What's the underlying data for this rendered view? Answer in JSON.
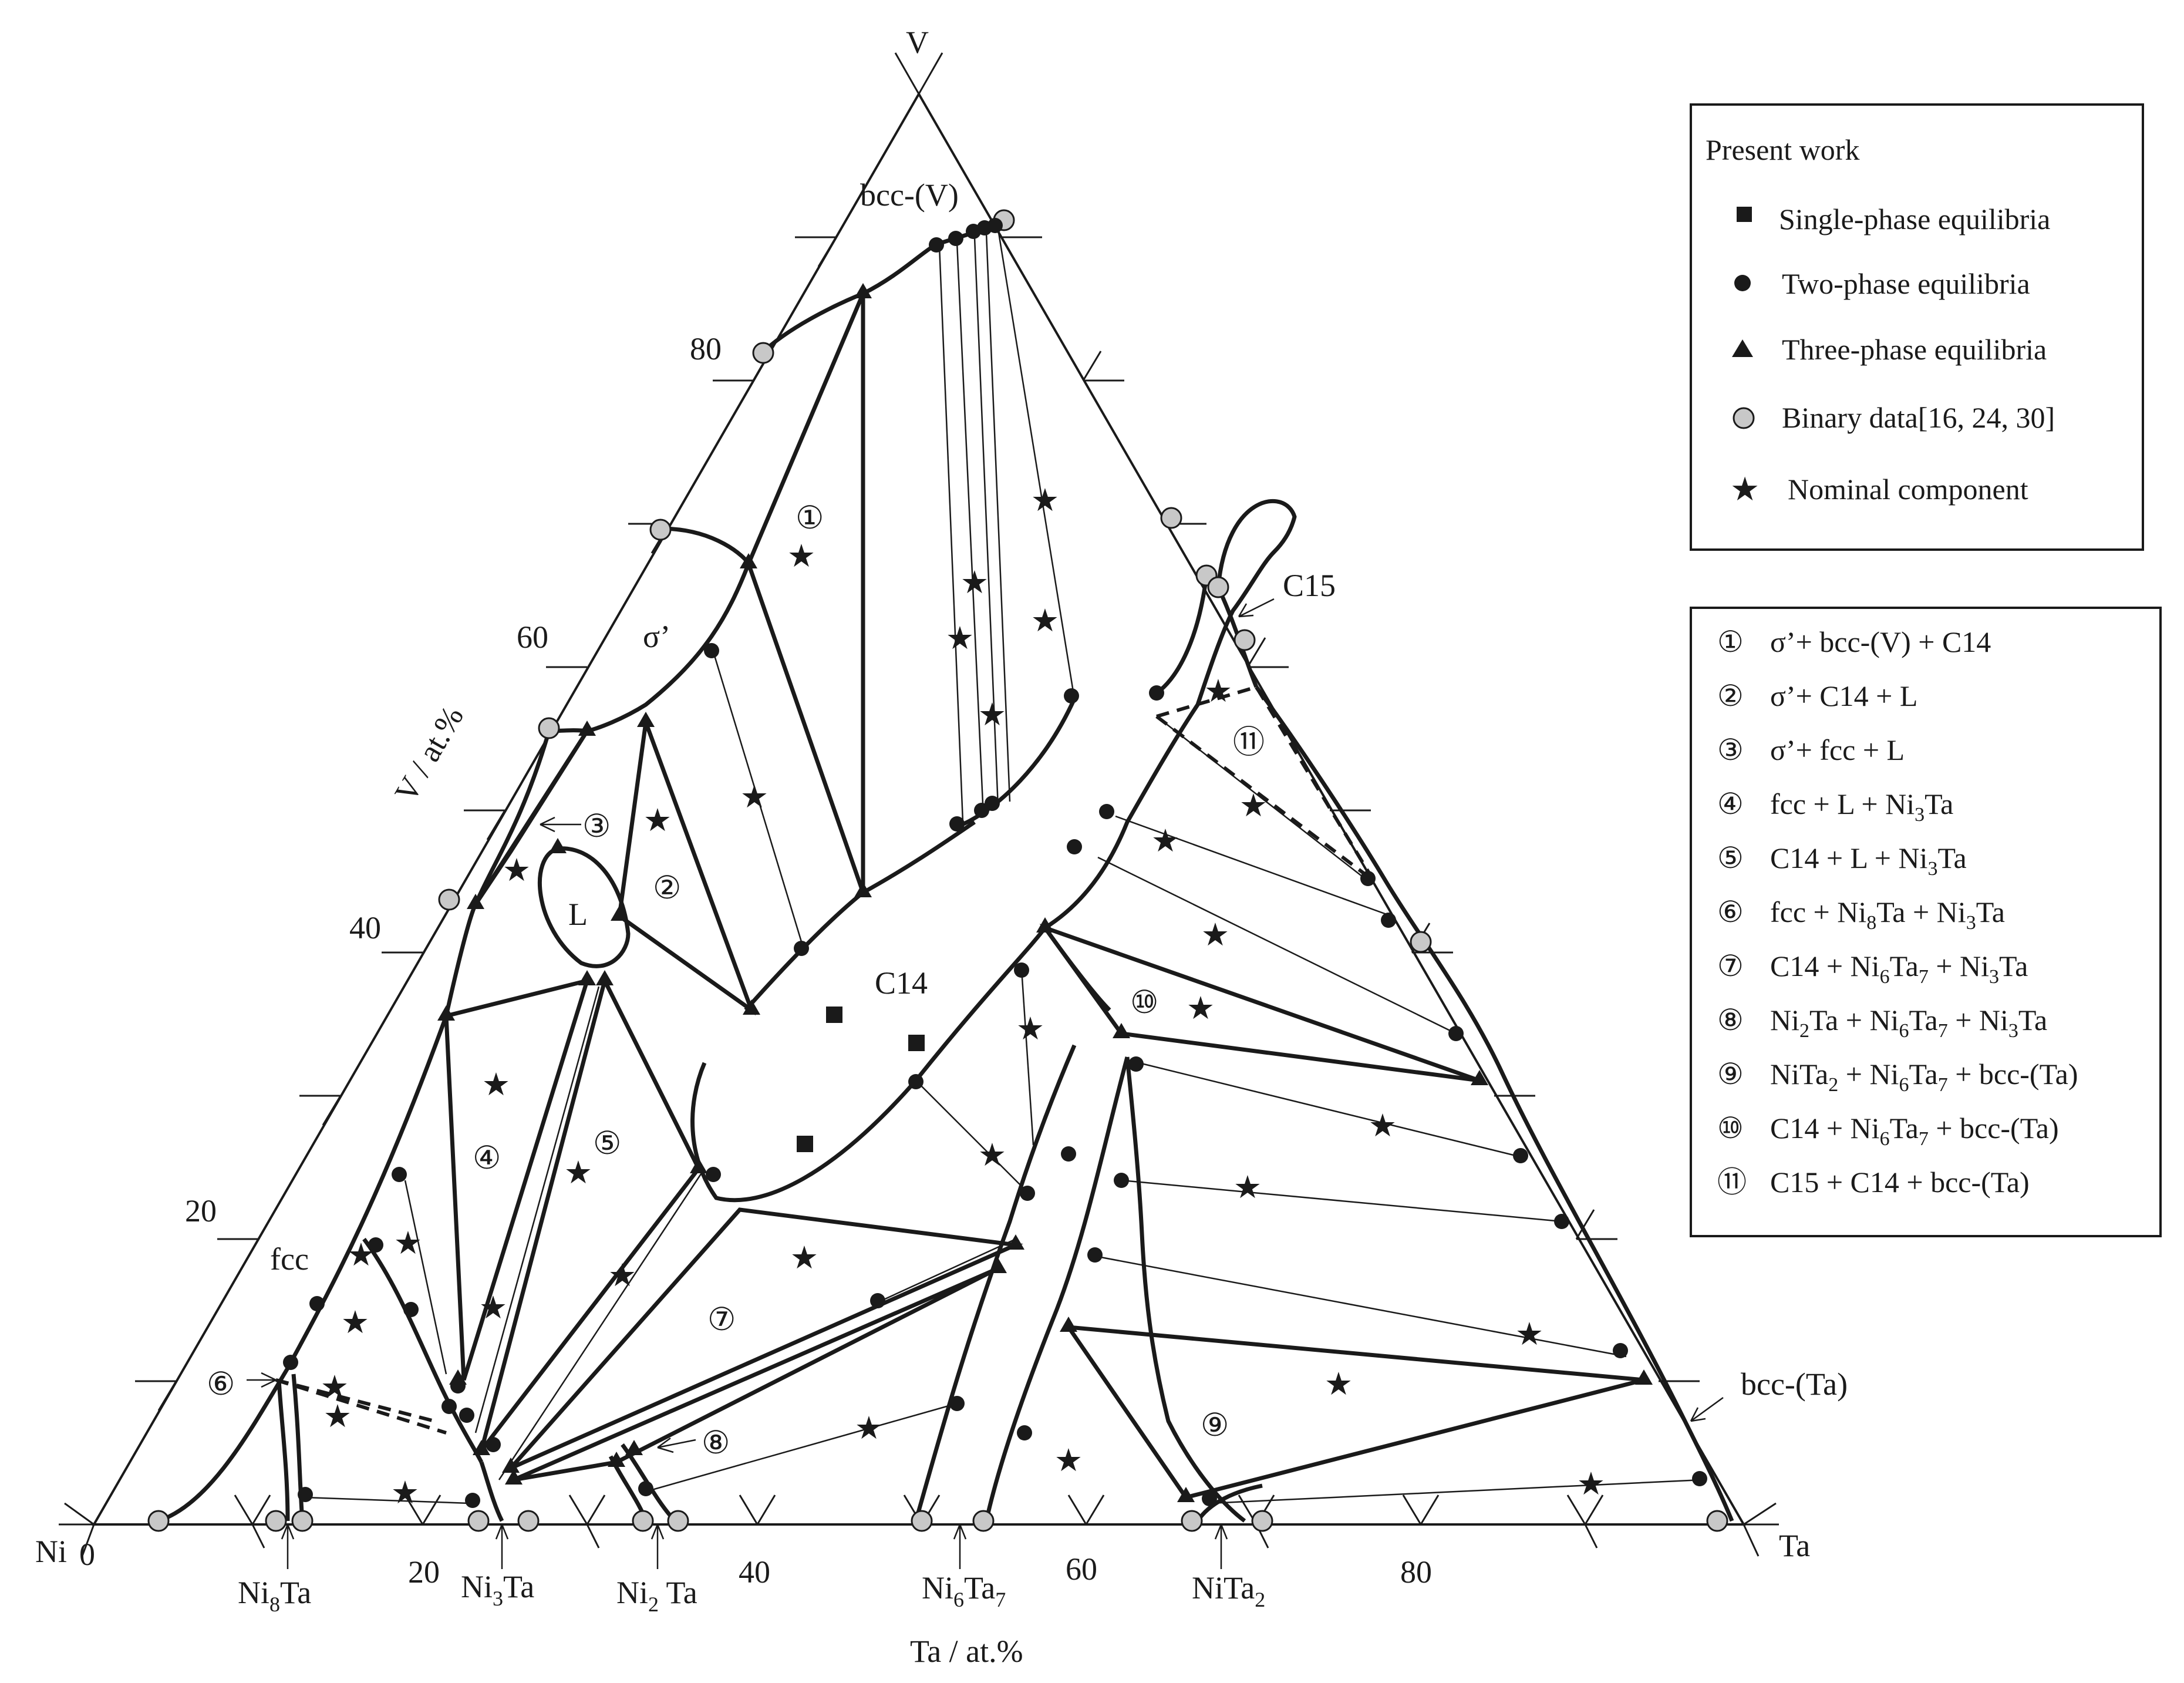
{
  "vertices": {
    "ni": "Ni",
    "ta": "Ta",
    "v": "V"
  },
  "axes": {
    "bottom_ticks": [
      "0",
      "20",
      "40",
      "60",
      "80"
    ],
    "left_ticks": [
      "80",
      "60",
      "40",
      "20"
    ],
    "left_label": "V / at.%",
    "bottom_label": "Ta / at.%"
  },
  "phase_labels": {
    "bcc_v": "bcc-(V)",
    "sigma": "σ’",
    "liquid": "L",
    "c14": "C14",
    "c15": "C15",
    "fcc": "fcc",
    "bcc_ta": "bcc-(Ta)"
  },
  "compounds": [
    {
      "id": "ni8ta",
      "base": "Ni",
      "sub": "8",
      "tail": "Ta"
    },
    {
      "id": "ni3ta",
      "base": "Ni",
      "sub": "3",
      "tail": "Ta"
    },
    {
      "id": "ni2ta",
      "base": "Ni",
      "sub": "2",
      "tail": " Ta"
    },
    {
      "id": "ni6ta7",
      "base": "Ni",
      "sub": "6",
      "tail": "Ta",
      "sub2": "7"
    },
    {
      "id": "nita2",
      "base": "NiTa",
      "sub": "2",
      "tail": ""
    }
  ],
  "region_numbers": [
    "①",
    "②",
    "③",
    "④",
    "⑤",
    "⑥",
    "⑦",
    "⑧",
    "⑨",
    "⑩",
    "⑪"
  ],
  "legend_symbols": {
    "title": "Present work",
    "items": [
      {
        "symbol": "square",
        "label": "Single-phase equilibria"
      },
      {
        "symbol": "circle",
        "label": "Two-phase equilibria"
      },
      {
        "symbol": "triangle",
        "label": "Three-phase equilibria"
      },
      {
        "symbol": "gray-circle",
        "label": "Binary data[16, 24, 30]"
      },
      {
        "symbol": "star",
        "label": "Nominal  component"
      }
    ]
  },
  "legend_regions": [
    {
      "num": "①",
      "parts": [
        [
          "σ’+ bcc-(V) + C14",
          ""
        ]
      ]
    },
    {
      "num": "②",
      "parts": [
        [
          "σ’+ C14 + L",
          ""
        ]
      ]
    },
    {
      "num": "③",
      "parts": [
        [
          "σ’+ fcc + L",
          ""
        ]
      ]
    },
    {
      "num": "④",
      "parts": [
        [
          "fcc + L + Ni",
          "3"
        ],
        [
          "Ta",
          ""
        ]
      ]
    },
    {
      "num": "⑤",
      "parts": [
        [
          "C14 + L + Ni",
          "3"
        ],
        [
          "Ta",
          ""
        ]
      ]
    },
    {
      "num": "⑥",
      "parts": [
        [
          "fcc + Ni",
          "8"
        ],
        [
          "Ta + Ni",
          "3"
        ],
        [
          "Ta",
          ""
        ]
      ]
    },
    {
      "num": "⑦",
      "parts": [
        [
          "C14 + Ni",
          "6"
        ],
        [
          "Ta",
          "7"
        ],
        [
          " + Ni",
          "3"
        ],
        [
          "Ta",
          ""
        ]
      ]
    },
    {
      "num": "⑧",
      "parts": [
        [
          "Ni",
          "2"
        ],
        [
          "Ta + Ni",
          "6"
        ],
        [
          "Ta",
          "7"
        ],
        [
          " + Ni",
          "3"
        ],
        [
          "Ta",
          ""
        ]
      ]
    },
    {
      "num": "⑨",
      "parts": [
        [
          "NiTa",
          "2"
        ],
        [
          " + Ni",
          "6"
        ],
        [
          "Ta",
          "7"
        ],
        [
          " + bcc-(Ta)",
          ""
        ]
      ]
    },
    {
      "num": "⑩",
      "parts": [
        [
          "C14 + Ni",
          "6"
        ],
        [
          "Ta",
          "7"
        ],
        [
          " + bcc-(Ta)",
          ""
        ]
      ]
    },
    {
      "num": "⑪",
      "parts": [
        [
          "C15 + C14 + bcc-(Ta)",
          ""
        ]
      ]
    }
  ],
  "colors": {
    "ink": "#1a1a1a",
    "binary_fill": "#c8c8c8",
    "background": "#ffffff"
  }
}
